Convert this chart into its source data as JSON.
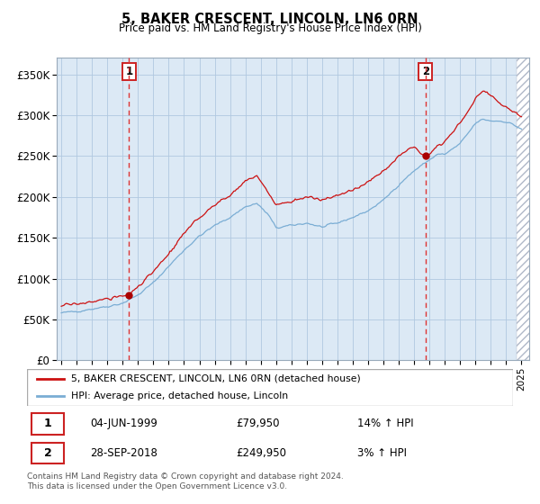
{
  "title": "5, BAKER CRESCENT, LINCOLN, LN6 0RN",
  "subtitle": "Price paid vs. HM Land Registry's House Price Index (HPI)",
  "legend_line1": "5, BAKER CRESCENT, LINCOLN, LN6 0RN (detached house)",
  "legend_line2": "HPI: Average price, detached house, Lincoln",
  "footer": "Contains HM Land Registry data © Crown copyright and database right 2024.\nThis data is licensed under the Open Government Licence v3.0.",
  "xlim_start": 1994.7,
  "xlim_end": 2025.5,
  "ylim_min": 0,
  "ylim_max": 370000,
  "yticks": [
    0,
    50000,
    100000,
    150000,
    200000,
    250000,
    300000,
    350000
  ],
  "ytick_labels": [
    "£0",
    "£50K",
    "£100K",
    "£150K",
    "£200K",
    "£250K",
    "£300K",
    "£350K"
  ],
  "hpi_color": "#7aadd4",
  "price_color": "#cc1111",
  "dot_color": "#aa0000",
  "vline_color": "#dd3333",
  "box_color": "#cc2222",
  "bg_color": "#dce9f5",
  "grid_color": "#b0c8e0",
  "annotation1_date": 1999.42,
  "annotation1_price": 79950,
  "annotation1_text": "04-JUN-1999",
  "annotation1_pct": "14% ↑ HPI",
  "annotation2_date": 2018.74,
  "annotation2_price": 249950,
  "annotation2_text": "28-SEP-2018",
  "annotation2_pct": "3% ↑ HPI",
  "hpi_anchors_t": [
    1995.0,
    1996.0,
    1997.0,
    1998.0,
    1999.0,
    2000.0,
    2001.0,
    2002.0,
    2003.0,
    2004.0,
    2005.0,
    2006.0,
    2007.0,
    2007.75,
    2008.5,
    2009.0,
    2010.0,
    2011.0,
    2012.0,
    2013.0,
    2014.0,
    2015.0,
    2016.0,
    2017.0,
    2018.0,
    2018.74,
    2019.5,
    2020.0,
    2021.0,
    2022.0,
    2022.5,
    2023.0,
    2023.5,
    2024.0,
    2024.5,
    2025.0
  ],
  "hpi_anchors_v": [
    58000,
    60000,
    63000,
    66000,
    70000,
    80000,
    95000,
    115000,
    135000,
    152000,
    165000,
    175000,
    188000,
    192000,
    178000,
    162000,
    165000,
    168000,
    163000,
    168000,
    175000,
    183000,
    196000,
    215000,
    232000,
    242000,
    252000,
    252000,
    265000,
    290000,
    295000,
    293000,
    293000,
    292000,
    288000,
    283000
  ],
  "price_anchors_t": [
    1995.0,
    1996.0,
    1997.0,
    1998.0,
    1999.0,
    1999.42,
    2000.0,
    2001.0,
    2002.0,
    2003.0,
    2004.0,
    2005.0,
    2006.0,
    2007.0,
    2007.75,
    2008.5,
    2009.0,
    2010.0,
    2011.0,
    2012.0,
    2013.0,
    2014.0,
    2015.0,
    2016.0,
    2017.0,
    2018.0,
    2018.74,
    2019.5,
    2020.0,
    2021.0,
    2022.0,
    2022.5,
    2023.0,
    2023.5,
    2024.0,
    2024.5,
    2025.0
  ],
  "price_anchors_v": [
    67000,
    69000,
    72000,
    75000,
    79000,
    79950,
    91000,
    108000,
    130000,
    155000,
    175000,
    190000,
    202000,
    220000,
    225000,
    205000,
    190000,
    195000,
    200000,
    196000,
    202000,
    208000,
    218000,
    232000,
    250000,
    262000,
    249950,
    262000,
    268000,
    290000,
    320000,
    330000,
    325000,
    315000,
    310000,
    305000,
    298000
  ]
}
